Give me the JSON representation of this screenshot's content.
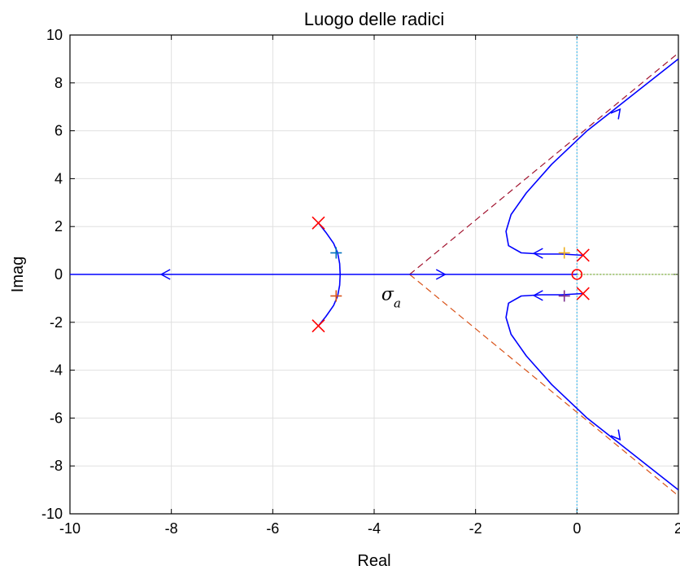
{
  "chart_data": {
    "type": "line",
    "title": "Luogo delle radici",
    "xlabel": "Real",
    "ylabel": "Imag",
    "xlim": [
      -10,
      2
    ],
    "ylim": [
      -10,
      10
    ],
    "grid": true,
    "xticks": [
      -10,
      -8,
      -6,
      -4,
      -2,
      0,
      2
    ],
    "yticks": [
      -10,
      -8,
      -6,
      -4,
      -2,
      0,
      2,
      4,
      6,
      8,
      10
    ],
    "xtick_labels": [
      "-10",
      "-8",
      "-6",
      "-4",
      "-2",
      "0",
      "2"
    ],
    "ytick_labels": [
      "-10",
      "-8",
      "-6",
      "-4",
      "-2",
      "0",
      "2",
      "4",
      "6",
      "8",
      "10"
    ],
    "annotation": {
      "label": "σ",
      "subscript": "a",
      "x": -3.6,
      "y": -0.8
    },
    "colors": {
      "locus": "#0000ff",
      "poles_zeros": "#ff0000",
      "asymptote_upper": "#a2142f",
      "asymptote_lower": "#d95319",
      "imag_axis": "#4dbeee",
      "real_axis_right": "#77ac30",
      "grid": "#e0e0e0"
    },
    "poles": [
      {
        "x": -5.1,
        "y": 2.15
      },
      {
        "x": -5.1,
        "y": -2.15
      },
      {
        "x": 0.12,
        "y": 0.8
      },
      {
        "x": 0.12,
        "y": -0.8
      }
    ],
    "zeros": [
      {
        "x": 0.0,
        "y": 0.0
      }
    ],
    "centroid": {
      "x": -3.3,
      "y": 0
    },
    "asymptotes": [
      {
        "name": "upper",
        "from": [
          -3.3,
          0
        ],
        "to": [
          2,
          9.25
        ]
      },
      {
        "name": "lower",
        "from": [
          -3.3,
          0
        ],
        "to": [
          2,
          -9.25
        ]
      }
    ],
    "series": [
      {
        "points": [
          [
            -5.1,
            2.15
          ],
          [
            -4.95,
            1.75
          ],
          [
            -4.8,
            1.3
          ],
          [
            -4.72,
            0.9
          ],
          [
            -4.68,
            0.45
          ],
          [
            -4.67,
            0
          ],
          [
            -4.68,
            -0.45
          ],
          [
            -4.72,
            -0.9
          ],
          [
            -4.8,
            -1.3
          ],
          [
            -4.95,
            -1.75
          ],
          [
            -5.1,
            -2.15
          ]
        ]
      },
      {
        "points": [
          [
            -3.3,
            0
          ],
          [
            -10,
            0
          ]
        ]
      },
      {
        "points": [
          [
            -3.3,
            0
          ],
          [
            0,
            0
          ]
        ]
      },
      {
        "points": [
          [
            0.12,
            0.8
          ],
          [
            -0.3,
            0.85
          ],
          [
            -0.7,
            0.85
          ],
          [
            -1.1,
            0.9
          ],
          [
            -1.35,
            1.2
          ],
          [
            -1.4,
            1.8
          ],
          [
            -1.3,
            2.5
          ],
          [
            -1.0,
            3.4
          ],
          [
            -0.5,
            4.6
          ],
          [
            0.2,
            6.0
          ],
          [
            0.8,
            7.0
          ],
          [
            1.4,
            8.0
          ],
          [
            2,
            9.0
          ]
        ]
      },
      {
        "points": [
          [
            0.12,
            -0.8
          ],
          [
            -0.3,
            -0.85
          ],
          [
            -0.7,
            -0.85
          ],
          [
            -1.1,
            -0.9
          ],
          [
            -1.35,
            -1.2
          ],
          [
            -1.4,
            -1.8
          ],
          [
            -1.3,
            -2.5
          ],
          [
            -1.0,
            -3.4
          ],
          [
            -0.5,
            -4.6
          ],
          [
            0.2,
            -6.0
          ],
          [
            0.8,
            -7.0
          ],
          [
            1.4,
            -8.0
          ],
          [
            2,
            -9.0
          ]
        ]
      }
    ],
    "arrows": [
      {
        "x": -8.2,
        "y": 0,
        "dir": "left"
      },
      {
        "x": -2.6,
        "y": 0,
        "dir": "right"
      },
      {
        "x": 0.85,
        "y": 6.9,
        "dir": "up-right"
      },
      {
        "x": 0.85,
        "y": -6.9,
        "dir": "down-right"
      },
      {
        "x": -0.85,
        "y": 0.88,
        "dir": "left"
      },
      {
        "x": -0.85,
        "y": -0.88,
        "dir": "left"
      }
    ],
    "markers": [
      {
        "x": -4.75,
        "y": 0.9,
        "color": "#0072bd"
      },
      {
        "x": -4.75,
        "y": -0.9,
        "color": "#d95319"
      },
      {
        "x": -0.25,
        "y": 0.9,
        "color": "#edb120"
      },
      {
        "x": -0.25,
        "y": -0.9,
        "color": "#7e2f8e"
      }
    ]
  }
}
